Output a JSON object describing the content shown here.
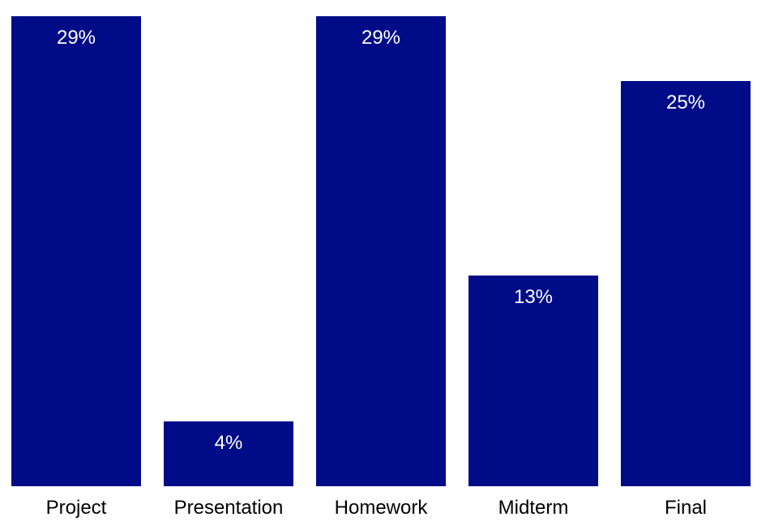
{
  "chart_data": {
    "type": "bar",
    "categories": [
      "Project",
      "Presentation",
      "Homework",
      "Midterm",
      "Final"
    ],
    "values": [
      29,
      4,
      29,
      13,
      25
    ],
    "data_labels": [
      "29%",
      "4%",
      "29%",
      "13%",
      "25%"
    ],
    "ylim": [
      0,
      29
    ],
    "grid": false,
    "legend": "none",
    "bar_color": "#000c87"
  }
}
